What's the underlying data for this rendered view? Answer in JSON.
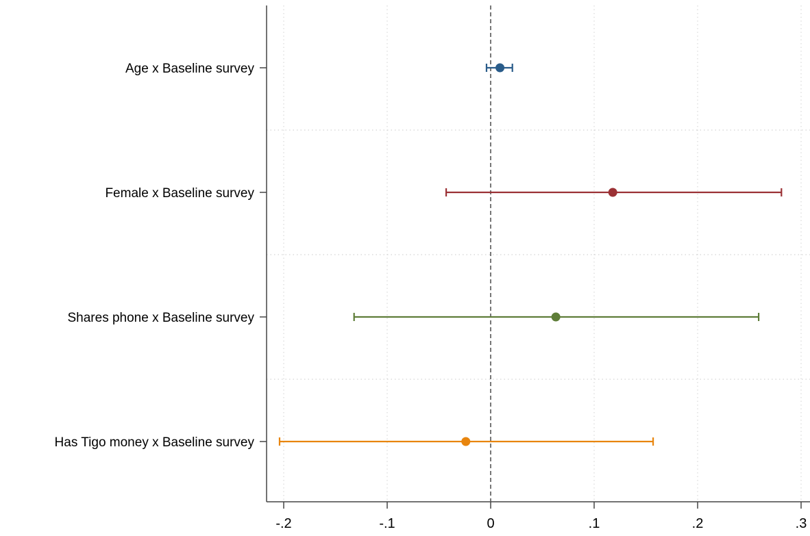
{
  "chart_data": {
    "type": "scatter",
    "title": "",
    "xlabel": "",
    "ylabel": "",
    "xlim": [
      -0.205,
      0.31
    ],
    "x_ticks": [
      {
        "value": -0.2,
        "label": "-.2"
      },
      {
        "value": -0.1,
        "label": "-.1"
      },
      {
        "value": 0,
        "label": "0"
      },
      {
        "value": 0.1,
        "label": ".1"
      },
      {
        "value": 0.2,
        "label": ".2"
      },
      {
        "value": 0.3,
        "label": ".3"
      }
    ],
    "reference_line_x": 0,
    "grid": true,
    "legend": "none",
    "series": [
      {
        "label": "Age x Baseline survey",
        "estimate": 0.009,
        "ci_low": -0.004,
        "ci_high": 0.021,
        "color": "#2a5c8a"
      },
      {
        "label": "Female x Baseline survey",
        "estimate": 0.118,
        "ci_low": -0.043,
        "ci_high": 0.281,
        "color": "#9b3135"
      },
      {
        "label": "Shares phone x Baseline survey",
        "estimate": 0.063,
        "ci_low": -0.132,
        "ci_high": 0.259,
        "color": "#5e7d38"
      },
      {
        "label": "Has Tigo money x Baseline survey",
        "estimate": -0.024,
        "ci_low": -0.204,
        "ci_high": 0.157,
        "color": "#e8850e"
      }
    ]
  }
}
